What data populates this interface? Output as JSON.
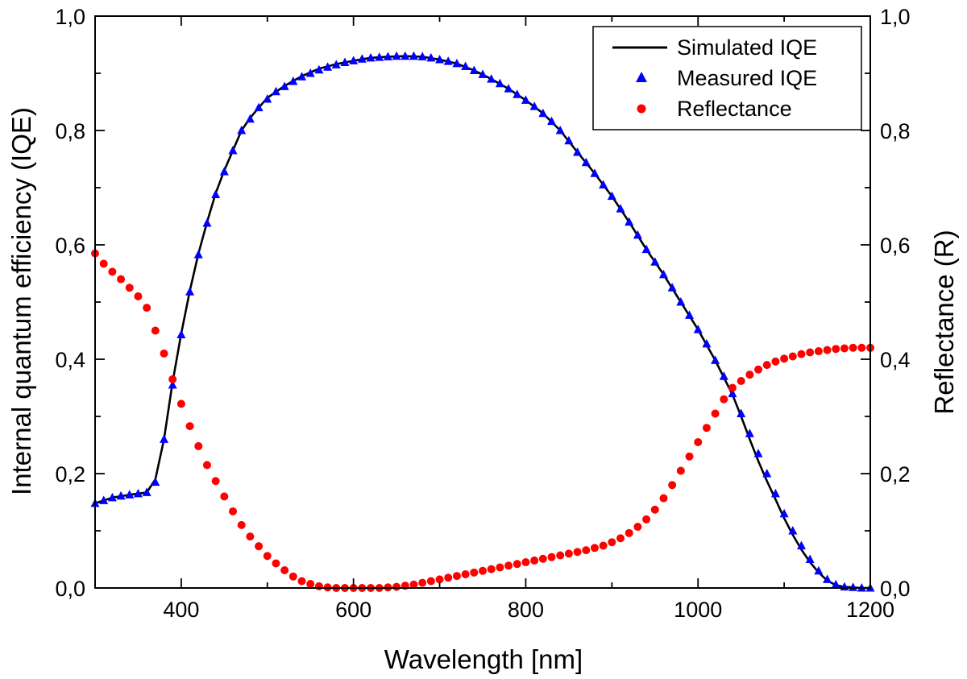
{
  "chart_data": {
    "type": "line+scatter",
    "title": "",
    "xlabel": "Wavelength [nm]",
    "ylabel_left": "Internal quantum efficiency (IQE)",
    "ylabel_right": "Reflectance (R)",
    "xlim": [
      300,
      1200
    ],
    "ylim_left": [
      0.0,
      1.0
    ],
    "ylim_right": [
      0.0,
      1.0
    ],
    "x_ticks": [
      400,
      600,
      800,
      1000,
      1200
    ],
    "x_tick_labels": [
      "400",
      "600",
      "800",
      "1000",
      "1200"
    ],
    "y_ticks": [
      0.0,
      0.2,
      0.4,
      0.6,
      0.8,
      1.0
    ],
    "y_tick_labels": [
      "0,0",
      "0,2",
      "0,4",
      "0,6",
      "0,8",
      "1,0"
    ],
    "legend_position": "top-right",
    "series": [
      {
        "name": "Simulated IQE",
        "kind": "line",
        "axis": "left",
        "color": "#000000",
        "x": [
          300,
          320,
          340,
          360,
          370,
          380,
          390,
          400,
          410,
          420,
          430,
          440,
          450,
          460,
          470,
          480,
          490,
          500,
          520,
          540,
          560,
          580,
          600,
          620,
          640,
          660,
          680,
          700,
          720,
          740,
          760,
          780,
          800,
          820,
          840,
          860,
          880,
          900,
          920,
          940,
          960,
          980,
          1000,
          1020,
          1040,
          1050,
          1060,
          1070,
          1080,
          1090,
          1100,
          1110,
          1120,
          1130,
          1140,
          1150,
          1160,
          1170,
          1180,
          1190,
          1200
        ],
        "y": [
          0.148,
          0.158,
          0.163,
          0.167,
          0.19,
          0.26,
          0.36,
          0.445,
          0.52,
          0.585,
          0.64,
          0.69,
          0.73,
          0.765,
          0.8,
          0.822,
          0.84,
          0.857,
          0.878,
          0.895,
          0.908,
          0.916,
          0.922,
          0.927,
          0.929,
          0.93,
          0.929,
          0.924,
          0.917,
          0.905,
          0.89,
          0.873,
          0.853,
          0.83,
          0.8,
          0.762,
          0.725,
          0.685,
          0.64,
          0.592,
          0.548,
          0.5,
          0.452,
          0.398,
          0.338,
          0.3,
          0.26,
          0.222,
          0.187,
          0.155,
          0.122,
          0.093,
          0.067,
          0.045,
          0.027,
          0.013,
          0.005,
          0.002,
          0.001,
          0.0,
          0.0
        ]
      },
      {
        "name": "Measured IQE",
        "kind": "scatter",
        "marker": "triangle",
        "axis": "left",
        "color": "#0000ff",
        "x": [
          300,
          310,
          320,
          330,
          340,
          350,
          360,
          370,
          380,
          390,
          400,
          410,
          420,
          430,
          440,
          450,
          460,
          470,
          480,
          490,
          500,
          510,
          520,
          530,
          540,
          550,
          560,
          570,
          580,
          590,
          600,
          610,
          620,
          630,
          640,
          650,
          660,
          670,
          680,
          690,
          700,
          710,
          720,
          730,
          740,
          750,
          760,
          770,
          780,
          790,
          800,
          810,
          820,
          830,
          840,
          850,
          860,
          870,
          880,
          890,
          900,
          910,
          920,
          930,
          940,
          950,
          960,
          970,
          980,
          990,
          1000,
          1010,
          1020,
          1030,
          1040,
          1050,
          1060,
          1070,
          1080,
          1090,
          1100,
          1110,
          1120,
          1130,
          1140,
          1150,
          1160,
          1170,
          1180,
          1190,
          1200
        ],
        "y": [
          0.148,
          0.153,
          0.158,
          0.161,
          0.163,
          0.165,
          0.167,
          0.185,
          0.26,
          0.355,
          0.443,
          0.518,
          0.583,
          0.638,
          0.688,
          0.728,
          0.765,
          0.8,
          0.82,
          0.84,
          0.855,
          0.868,
          0.877,
          0.886,
          0.894,
          0.9,
          0.906,
          0.911,
          0.915,
          0.919,
          0.922,
          0.925,
          0.927,
          0.928,
          0.929,
          0.93,
          0.93,
          0.93,
          0.929,
          0.927,
          0.924,
          0.921,
          0.917,
          0.912,
          0.905,
          0.898,
          0.89,
          0.882,
          0.873,
          0.863,
          0.853,
          0.842,
          0.83,
          0.816,
          0.8,
          0.782,
          0.762,
          0.744,
          0.725,
          0.705,
          0.685,
          0.663,
          0.64,
          0.617,
          0.592,
          0.57,
          0.548,
          0.525,
          0.5,
          0.477,
          0.452,
          0.427,
          0.398,
          0.37,
          0.34,
          0.305,
          0.27,
          0.235,
          0.2,
          0.165,
          0.13,
          0.1,
          0.074,
          0.05,
          0.03,
          0.015,
          0.006,
          0.002,
          0.001,
          0.0,
          0.0
        ]
      },
      {
        "name": "Reflectance",
        "kind": "scatter",
        "marker": "circle",
        "axis": "right",
        "color": "#ff0000",
        "x": [
          300,
          310,
          320,
          330,
          340,
          350,
          360,
          370,
          380,
          390,
          400,
          410,
          420,
          430,
          440,
          450,
          460,
          470,
          480,
          490,
          500,
          510,
          520,
          530,
          540,
          550,
          560,
          570,
          580,
          590,
          600,
          610,
          620,
          630,
          640,
          650,
          660,
          670,
          680,
          690,
          700,
          710,
          720,
          730,
          740,
          750,
          760,
          770,
          780,
          790,
          800,
          810,
          820,
          830,
          840,
          850,
          860,
          870,
          880,
          890,
          900,
          910,
          920,
          930,
          940,
          950,
          960,
          970,
          980,
          990,
          1000,
          1010,
          1020,
          1030,
          1040,
          1050,
          1060,
          1070,
          1080,
          1090,
          1100,
          1110,
          1120,
          1130,
          1140,
          1150,
          1160,
          1170,
          1180,
          1190,
          1200
        ],
        "y": [
          0.585,
          0.567,
          0.553,
          0.54,
          0.525,
          0.51,
          0.49,
          0.45,
          0.41,
          0.365,
          0.322,
          0.283,
          0.248,
          0.215,
          0.187,
          0.16,
          0.134,
          0.11,
          0.09,
          0.073,
          0.056,
          0.043,
          0.031,
          0.02,
          0.012,
          0.007,
          0.003,
          0.001,
          0.0,
          0.0,
          0.0,
          0.0,
          0.0,
          0.0,
          0.001,
          0.002,
          0.004,
          0.006,
          0.009,
          0.012,
          0.015,
          0.018,
          0.021,
          0.024,
          0.027,
          0.03,
          0.033,
          0.036,
          0.039,
          0.042,
          0.045,
          0.048,
          0.051,
          0.054,
          0.057,
          0.06,
          0.063,
          0.066,
          0.07,
          0.074,
          0.08,
          0.087,
          0.096,
          0.107,
          0.12,
          0.137,
          0.157,
          0.18,
          0.205,
          0.23,
          0.255,
          0.28,
          0.305,
          0.33,
          0.35,
          0.362,
          0.373,
          0.382,
          0.39,
          0.396,
          0.401,
          0.405,
          0.409,
          0.412,
          0.414,
          0.416,
          0.418,
          0.419,
          0.42,
          0.42,
          0.42
        ]
      }
    ]
  }
}
